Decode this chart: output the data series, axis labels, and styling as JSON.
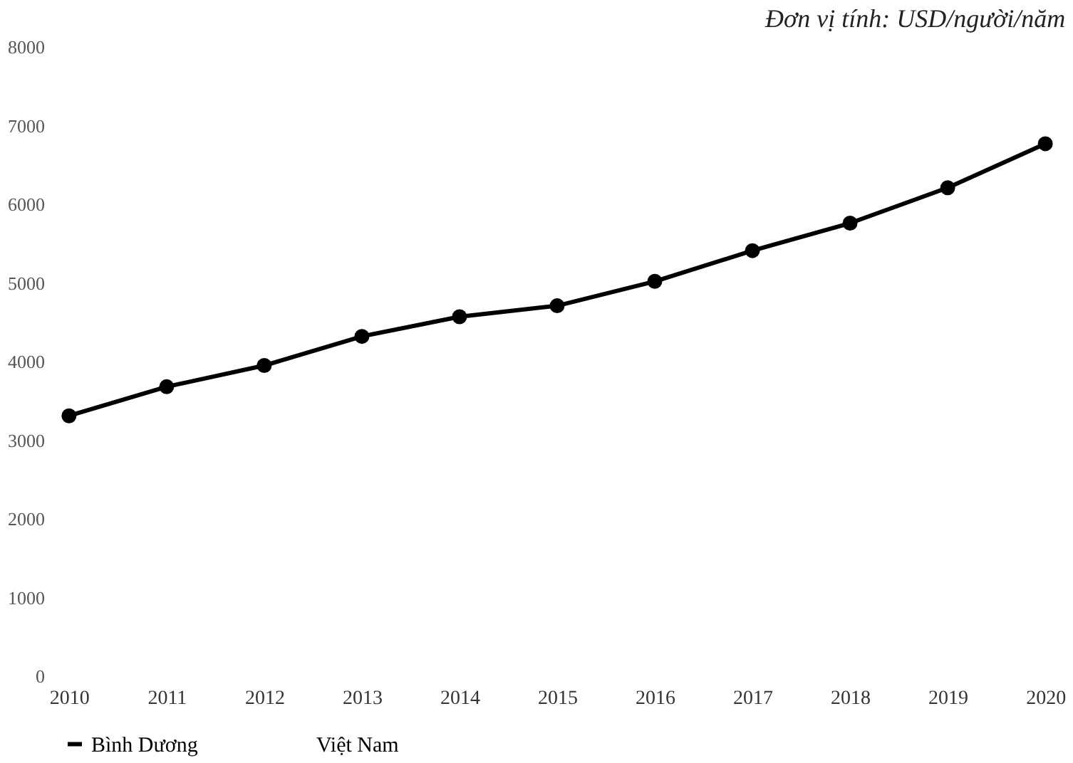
{
  "chart_data": {
    "type": "line",
    "subtitle": "Đơn vị tính: USD/người/năm",
    "categories": [
      "2010",
      "2011",
      "2012",
      "2013",
      "2014",
      "2015",
      "2016",
      "2017",
      "2018",
      "2019",
      "2020"
    ],
    "series": [
      {
        "name": "Bình Dương",
        "color": "#000000",
        "values": [
          3310,
          3680,
          3950,
          4320,
          4570,
          4710,
          5020,
          5410,
          5760,
          6210,
          6770
        ]
      },
      {
        "name": "Việt Nam",
        "values": [
          null,
          null,
          null,
          null,
          null,
          null,
          null,
          null,
          null,
          null,
          null
        ]
      }
    ],
    "ylim": [
      0,
      8000
    ],
    "yticks": [
      0,
      1000,
      2000,
      3000,
      4000,
      5000,
      6000,
      7000,
      8000
    ],
    "grid": false,
    "legend": "bottom",
    "marker": "circle",
    "line_style": "solid"
  }
}
